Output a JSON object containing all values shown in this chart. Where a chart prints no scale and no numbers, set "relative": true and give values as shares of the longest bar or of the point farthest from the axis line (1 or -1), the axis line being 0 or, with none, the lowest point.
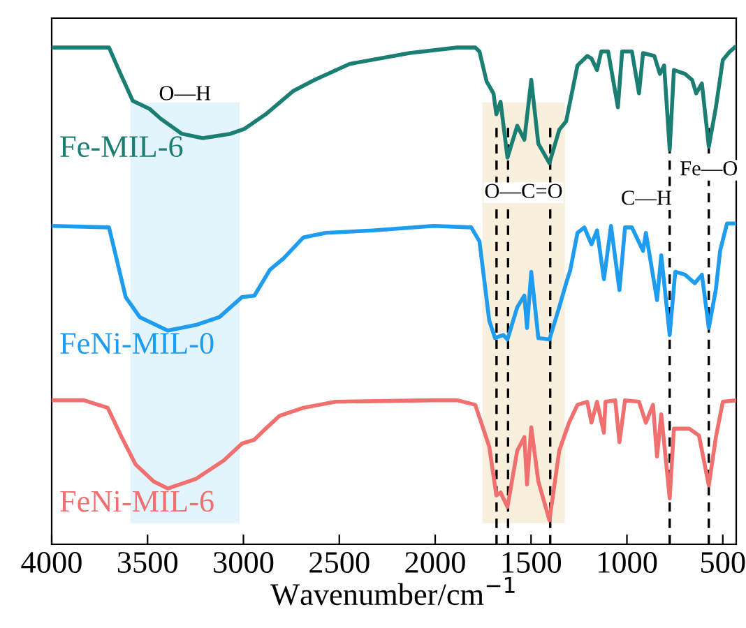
{
  "chart_data": {
    "type": "line",
    "relative": true,
    "xlabel": "Wavenumber/cm$^{−1}$",
    "xlim": [
      4000,
      430
    ],
    "xticks": [
      4000,
      3500,
      3000,
      2500,
      2000,
      1500,
      1000,
      500
    ],
    "grid": false,
    "legend": false,
    "marker": "none",
    "line_style": "solid",
    "series": [
      {
        "name": "Fe-MIL-6",
        "color": "#1a7f72",
        "x": [
          4000,
          3701,
          3650,
          3577,
          3490,
          3431,
          3322,
          3212,
          3067,
          2994,
          2884,
          2739,
          2629,
          2447,
          2133,
          1885,
          1791,
          1769,
          1732,
          1696,
          1681,
          1659,
          1623,
          1572,
          1535,
          1499,
          1462,
          1404,
          1353,
          1317,
          1258,
          1207,
          1185,
          1156,
          1134,
          1098,
          1047,
          1025,
          974,
          937,
          916,
          857,
          828,
          806,
          777,
          755,
          697,
          660,
          639,
          609,
          573,
          536,
          500,
          463,
          430
        ],
        "values": [
          0.997,
          0.997,
          0.952,
          0.89,
          0.874,
          0.854,
          0.824,
          0.815,
          0.824,
          0.834,
          0.863,
          0.91,
          0.932,
          0.964,
          0.986,
          0.997,
          0.997,
          0.989,
          0.929,
          0.905,
          0.863,
          0.888,
          0.776,
          0.84,
          0.812,
          0.932,
          0.804,
          0.765,
          0.832,
          0.849,
          0.961,
          0.98,
          0.975,
          0.952,
          0.989,
          0.989,
          0.877,
          0.989,
          0.989,
          0.905,
          0.986,
          0.98,
          0.944,
          0.961,
          0.792,
          0.952,
          0.944,
          0.932,
          0.905,
          0.925,
          0.798,
          0.877,
          0.972,
          0.989,
          1.0
        ]
      },
      {
        "name": "FeNi-MIL-0",
        "color": "#1e9cf0",
        "x": [
          4000,
          3701,
          3614,
          3541,
          3395,
          3249,
          3125,
          3008,
          2943,
          2862,
          2790,
          2687,
          2571,
          2323,
          2009,
          1812,
          1769,
          1718,
          1688,
          1645,
          1623,
          1572,
          1535,
          1521,
          1499,
          1462,
          1404,
          1353,
          1317,
          1295,
          1258,
          1222,
          1185,
          1156,
          1120,
          1083,
          1039,
          1010,
          974,
          916,
          901,
          843,
          821,
          777,
          748,
          697,
          646,
          609,
          573,
          536,
          514,
          478,
          430
        ],
        "values": [
          0.639,
          0.636,
          0.496,
          0.456,
          0.429,
          0.44,
          0.456,
          0.496,
          0.499,
          0.551,
          0.574,
          0.616,
          0.625,
          0.63,
          0.639,
          0.636,
          0.608,
          0.449,
          0.414,
          0.42,
          0.411,
          0.476,
          0.499,
          0.434,
          0.547,
          0.414,
          0.411,
          0.476,
          0.524,
          0.551,
          0.625,
          0.636,
          0.602,
          0.63,
          0.532,
          0.639,
          0.51,
          0.636,
          0.636,
          0.589,
          0.625,
          0.49,
          0.58,
          0.42,
          0.547,
          0.541,
          0.524,
          0.541,
          0.434,
          0.512,
          0.589,
          0.644,
          0.644
        ]
      },
      {
        "name": "FeNi-MIL-6",
        "color": "#f07070",
        "x": [
          4000,
          3832,
          3708,
          3635,
          3562,
          3468,
          3395,
          3249,
          3103,
          3008,
          2943,
          2884,
          2811,
          2687,
          2520,
          2009,
          1885,
          1791,
          1718,
          1681,
          1659,
          1623,
          1572,
          1535,
          1521,
          1499,
          1462,
          1404,
          1353,
          1302,
          1258,
          1207,
          1185,
          1156,
          1120,
          1112,
          1061,
          1039,
          1010,
          937,
          901,
          864,
          843,
          821,
          777,
          755,
          675,
          624,
          573,
          536,
          500,
          430
        ],
        "values": [
          0.289,
          0.289,
          0.274,
          0.215,
          0.16,
          0.126,
          0.112,
          0.131,
          0.168,
          0.202,
          0.21,
          0.232,
          0.258,
          0.274,
          0.286,
          0.289,
          0.289,
          0.28,
          0.196,
          0.098,
          0.104,
          0.075,
          0.188,
          0.215,
          0.12,
          0.235,
          0.126,
          0.048,
          0.188,
          0.244,
          0.28,
          0.286,
          0.244,
          0.286,
          0.224,
          0.286,
          0.289,
          0.205,
          0.289,
          0.286,
          0.244,
          0.28,
          0.176,
          0.261,
          0.092,
          0.232,
          0.232,
          0.218,
          0.118,
          0.215,
          0.286,
          0.289
        ]
      }
    ],
    "bands": [
      {
        "axis": "x",
        "from": 3590,
        "to": 3020,
        "color": "#e3f4fd",
        "label": "O—H"
      },
      {
        "axis": "x",
        "from": 1754,
        "to": 1324,
        "color": "#f8efdc",
        "label": "O—C=O"
      }
    ],
    "ref_lines": [
      {
        "axis": "x",
        "value": 1680,
        "color": "#000000",
        "line_style": "dashed"
      },
      {
        "axis": "x",
        "value": 1620,
        "color": "#000000",
        "line_style": "dashed"
      },
      {
        "axis": "x",
        "value": 1400,
        "color": "#000000",
        "line_style": "dashed"
      },
      {
        "axis": "x",
        "value": 777,
        "color": "#000000",
        "line_style": "dashed",
        "label": "C—H"
      },
      {
        "axis": "x",
        "value": 573,
        "color": "#000000",
        "line_style": "dashed",
        "label": "Fe—O"
      }
    ]
  }
}
